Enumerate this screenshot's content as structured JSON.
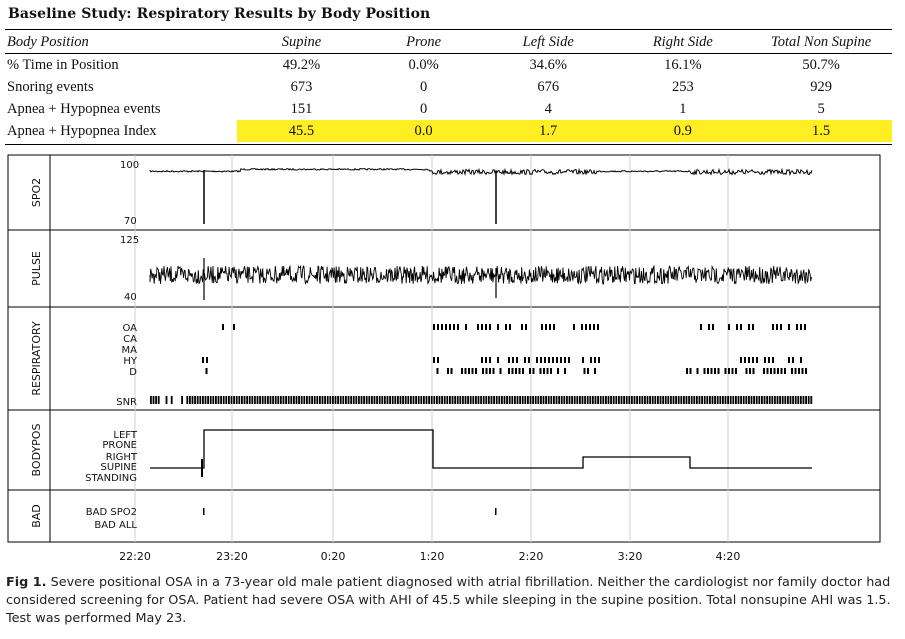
{
  "title": "Baseline Study: Respiratory Results by Body Position",
  "table": {
    "headers": [
      "Body Position",
      "Supine",
      "Prone",
      "Left Side",
      "Right Side",
      "Total Non Supine"
    ],
    "rows": [
      {
        "label": "% Time in Position",
        "values": [
          "49.2%",
          "0.0%",
          "34.6%",
          "16.1%",
          "50.7%"
        ],
        "highlight": false
      },
      {
        "label": "Snoring events",
        "values": [
          "673",
          "0",
          "676",
          "253",
          "929"
        ],
        "highlight": false
      },
      {
        "label": "Apnea + Hypopnea events",
        "values": [
          "151",
          "0",
          "4",
          "1",
          "5"
        ],
        "highlight": false
      },
      {
        "label": "Apnea + Hypopnea Index",
        "values": [
          "45.5",
          "0.0",
          "1.7",
          "0.9",
          "1.5"
        ],
        "highlight": true
      }
    ],
    "highlight_color": "#ffee22"
  },
  "figure": {
    "panels": {
      "spo2": {
        "label": "SPO2",
        "max": "100",
        "min": "70"
      },
      "pulse": {
        "label": "PULSE",
        "max": "125",
        "min": "40"
      },
      "respiratory": {
        "label": "RESPIRATORY",
        "channels": [
          "OA",
          "CA",
          "MA",
          "HY",
          "D"
        ],
        "snr": "SNR"
      },
      "bodypos": {
        "label": "BODYPOS",
        "positions": [
          "LEFT",
          "PRONE",
          "RIGHT",
          "SUPINE",
          "STANDING"
        ]
      },
      "bad": {
        "label": "BAD",
        "channels": [
          "BAD SPO2",
          "BAD ALL"
        ]
      }
    },
    "time_ticks": [
      "22:20",
      "23:20",
      "0:20",
      "1:20",
      "2:20",
      "3:20",
      "4:20"
    ]
  },
  "caption": {
    "label": "Fig 1.",
    "text": "Severe positional OSA in a 73-year old male patient diagnosed with atrial fibrillation. Neither the cardiologist nor family doctor had considered screening for OSA. Patient had severe OSA with AHI of 45.5 while sleeping in the supine position. Total nonsupine AHI was 1.5. Test was performed May 23."
  }
}
